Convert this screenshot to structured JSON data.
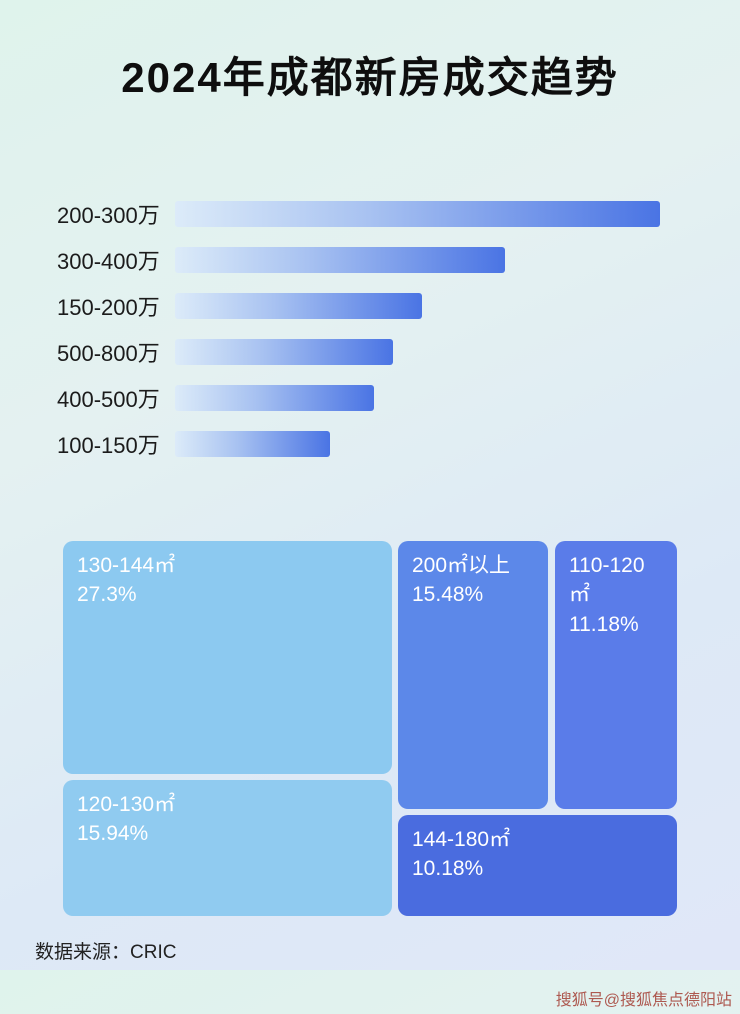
{
  "page": {
    "title": "2024年成都新房成交趋势",
    "source_label": "数据来源：CRIC",
    "watermark": "搜狐号@搜狐焦点德阳站"
  },
  "chart_data": [
    {
      "type": "bar",
      "orientation": "horizontal",
      "categories": [
        "200-300万",
        "300-400万",
        "150-200万",
        "500-800万",
        "400-500万",
        "100-150万"
      ],
      "values": [
        100,
        68,
        51,
        45,
        41,
        32
      ],
      "value_note": "relative bar lengths, max bar = 100 (no numeric axis shown)",
      "grid": false,
      "legend": false
    },
    {
      "type": "treemap",
      "items": [
        {
          "label": "130-144㎡",
          "value_pct": 27.3,
          "display": "27.3%",
          "color": "#8cc9f0"
        },
        {
          "label": "120-130㎡",
          "value_pct": 15.94,
          "display": "15.94%",
          "color": "#90cbf0"
        },
        {
          "label": "200㎡以上",
          "value_pct": 15.48,
          "display": "15.48%",
          "color": "#5c88e9"
        },
        {
          "label": "110-120㎡",
          "value_pct": 11.18,
          "display": "11.18%",
          "color": "#5a7ce9"
        },
        {
          "label": "144-180㎡",
          "value_pct": 10.18,
          "display": "10.18%",
          "color": "#4a6cdf"
        }
      ],
      "legend": false
    }
  ],
  "colors": {
    "bar_gradient_start": "#dcebf9",
    "bar_gradient_end": "#4a74e4",
    "background_top": "#dff3ec",
    "background_bottom": "#e0e7f8",
    "watermark": "#a8493f"
  }
}
